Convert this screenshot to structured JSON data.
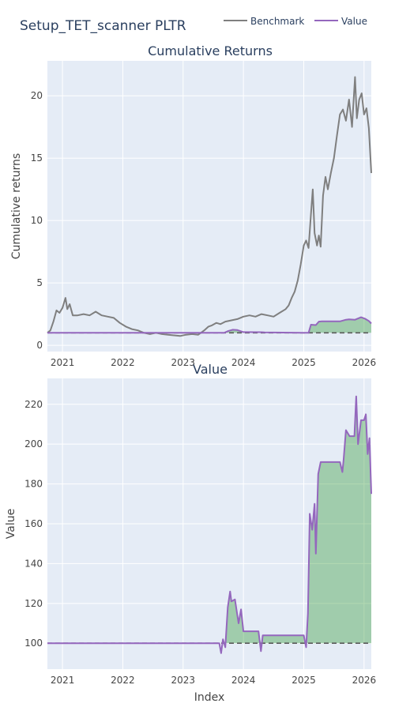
{
  "main_title": "Setup_TET_scanner PLTR",
  "legend": [
    {
      "label": "Benchmark",
      "color": "#7f7f7f"
    },
    {
      "label": "Value",
      "color": "#9467bd"
    }
  ],
  "chart_data": [
    {
      "type": "line",
      "title": "Cumulative Returns",
      "ylabel": "Cumulative returns",
      "xlabel": "",
      "ylim": [
        -0.5,
        22.8
      ],
      "xlim": [
        2020.75,
        2026.12
      ],
      "x_ticks": [
        "2021",
        "2022",
        "2023",
        "2024",
        "2025",
        "2026"
      ],
      "y_ticks": [
        0,
        5,
        10,
        15,
        20
      ],
      "baseline": 1,
      "series": [
        {
          "name": "Benchmark",
          "color": "#7f7f7f",
          "x": [
            2020.75,
            2020.8,
            2020.85,
            2020.9,
            2020.95,
            2021.0,
            2021.05,
            2021.08,
            2021.12,
            2021.17,
            2021.25,
            2021.35,
            2021.45,
            2021.55,
            2021.65,
            2021.75,
            2021.85,
            2021.95,
            2022.05,
            2022.15,
            2022.25,
            2022.35,
            2022.45,
            2022.55,
            2022.65,
            2022.75,
            2022.85,
            2022.95,
            2023.05,
            2023.15,
            2023.25,
            2023.35,
            2023.42,
            2023.48,
            2023.55,
            2023.62,
            2023.7,
            2023.8,
            2023.9,
            2024.0,
            2024.1,
            2024.2,
            2024.3,
            2024.4,
            2024.5,
            2024.6,
            2024.7,
            2024.75,
            2024.8,
            2024.85,
            2024.9,
            2024.95,
            2025.0,
            2025.04,
            2025.08,
            2025.12,
            2025.15,
            2025.18,
            2025.22,
            2025.25,
            2025.28,
            2025.32,
            2025.36,
            2025.4,
            2025.45,
            2025.5,
            2025.55,
            2025.6,
            2025.65,
            2025.7,
            2025.75,
            2025.8,
            2025.85,
            2025.88,
            2025.92,
            2025.96,
            2026.0,
            2026.04,
            2026.08,
            2026.12
          ],
          "values": [
            1.0,
            1.2,
            1.9,
            2.8,
            2.6,
            3.0,
            3.8,
            2.9,
            3.3,
            2.4,
            2.4,
            2.5,
            2.4,
            2.7,
            2.4,
            2.3,
            2.2,
            1.8,
            1.5,
            1.3,
            1.2,
            1.0,
            0.9,
            1.0,
            0.9,
            0.85,
            0.8,
            0.75,
            0.85,
            0.9,
            0.85,
            1.2,
            1.5,
            1.6,
            1.8,
            1.7,
            1.9,
            2.0,
            2.1,
            2.3,
            2.4,
            2.3,
            2.5,
            2.4,
            2.3,
            2.6,
            2.9,
            3.2,
            3.8,
            4.3,
            5.2,
            6.5,
            8.0,
            8.4,
            7.8,
            10.5,
            12.5,
            9.0,
            8.0,
            8.8,
            7.9,
            12.0,
            13.5,
            12.5,
            13.8,
            15.0,
            16.8,
            18.5,
            18.9,
            18.0,
            19.7,
            17.5,
            21.5,
            18.2,
            19.7,
            20.2,
            18.5,
            19.0,
            17.4,
            13.8
          ]
        },
        {
          "name": "Value",
          "color": "#9467bd",
          "x": [
            2020.75,
            2023.68,
            2023.75,
            2023.82,
            2023.9,
            2024.0,
            2024.05,
            2024.3,
            2024.35,
            2025.08,
            2025.12,
            2025.2,
            2025.25,
            2025.3,
            2025.4,
            2025.6,
            2025.7,
            2025.75,
            2025.85,
            2025.95,
            2026.02,
            2026.08,
            2026.12
          ],
          "values": [
            1.0,
            1.0,
            1.15,
            1.25,
            1.22,
            1.06,
            1.06,
            1.05,
            1.03,
            1.0,
            1.65,
            1.62,
            1.9,
            1.92,
            1.92,
            1.92,
            2.05,
            2.08,
            2.05,
            2.25,
            2.12,
            1.95,
            1.75
          ]
        }
      ]
    },
    {
      "type": "line",
      "title": "Value",
      "ylabel": "Value",
      "xlabel": "Index",
      "ylim": [
        87,
        233
      ],
      "xlim": [
        2020.75,
        2026.12
      ],
      "x_ticks": [
        "2021",
        "2022",
        "2023",
        "2024",
        "2025",
        "2026"
      ],
      "y_ticks": [
        100,
        120,
        140,
        160,
        180,
        200,
        220
      ],
      "baseline": 100,
      "series": [
        {
          "name": "Value",
          "color": "#9467bd",
          "x": [
            2020.75,
            2023.6,
            2023.63,
            2023.66,
            2023.7,
            2023.74,
            2023.78,
            2023.8,
            2023.86,
            2023.92,
            2023.96,
            2024.0,
            2024.1,
            2024.2,
            2024.25,
            2024.29,
            2024.32,
            2024.36,
            2025.0,
            2025.04,
            2025.07,
            2025.1,
            2025.14,
            2025.18,
            2025.2,
            2025.24,
            2025.28,
            2025.6,
            2025.64,
            2025.66,
            2025.7,
            2025.76,
            2025.84,
            2025.87,
            2025.9,
            2025.95,
            2026.0,
            2026.03,
            2026.06,
            2026.09,
            2026.12
          ],
          "values": [
            100,
            100,
            95,
            102,
            98,
            118,
            126,
            121,
            122,
            110,
            117,
            106,
            106,
            106,
            106,
            96,
            104,
            104,
            104,
            98,
            115,
            165,
            157,
            170,
            145,
            185,
            191,
            191,
            186,
            192,
            207,
            204,
            204,
            224,
            200,
            212,
            212,
            215,
            195,
            203,
            175
          ]
        }
      ]
    }
  ]
}
